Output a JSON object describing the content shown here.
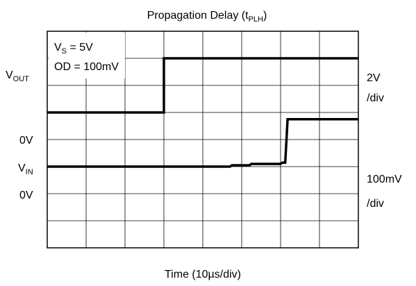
{
  "chart_data": {
    "type": "line",
    "title": {
      "main": "Propagation Delay (t",
      "sub": "PLH",
      "close": ")"
    },
    "xlabel": "Time (10µs/div)",
    "grid": true,
    "divisions": {
      "x": 8,
      "y": 8
    },
    "conditions": {
      "vs_main": "V",
      "vs_sub": "S",
      "vs_rest": " = 5V",
      "od": "OD = 100mV"
    },
    "left_labels": {
      "vout_main": "V",
      "vout_sub": "OUT",
      "zero_out": "0V",
      "vin_main": "V",
      "vin_sub": "IN",
      "zero_in": "0V"
    },
    "right_labels": {
      "out_scale": "2V",
      "out_div": "/div",
      "in_scale": "100mV",
      "in_div": "/div"
    },
    "series": [
      {
        "id": "vout",
        "units_per_div": 2,
        "zero_div": 5,
        "x_div": [
          0,
          4.7,
          4.75,
          5.2,
          5.25,
          6.0,
          6.05,
          6.12,
          6.18,
          8.0
        ],
        "y_div": [
          0,
          0,
          0.05,
          0.05,
          0.1,
          0.1,
          0.15,
          0.15,
          1.75,
          1.75
        ]
      },
      {
        "id": "vin",
        "units_per_div": 100,
        "zero_div": 2,
        "x_div": [
          0,
          3.0,
          3.0,
          8.0
        ],
        "y_div": [
          -1,
          -1,
          1,
          1
        ]
      }
    ]
  }
}
